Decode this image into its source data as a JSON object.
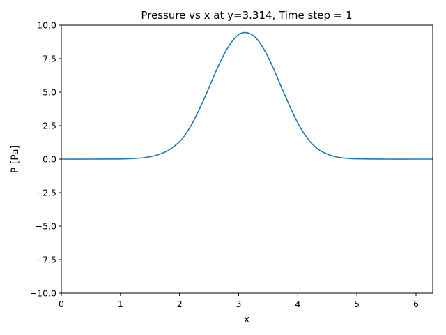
{
  "chart_data": {
    "type": "line",
    "title": "Pressure vs x at y=3.314, Time step = 1",
    "xlabel": "x",
    "ylabel": "P [Pa]",
    "xlim": [
      0,
      6.283
    ],
    "ylim": [
      -10,
      10
    ],
    "x_ticks": [
      0,
      1,
      2,
      3,
      4,
      5,
      6
    ],
    "x_tick_labels": [
      "0",
      "1",
      "2",
      "3",
      "4",
      "5",
      "6"
    ],
    "y_ticks": [
      -10,
      -7.5,
      -5,
      -2.5,
      0,
      2.5,
      5,
      7.5,
      10
    ],
    "y_tick_labels": [
      "−10.0",
      "−7.5",
      "−5.0",
      "−2.5",
      "0.0",
      "2.5",
      "5.0",
      "7.5",
      "10.0"
    ],
    "grid": false,
    "series": [
      {
        "color": "#1f77b4",
        "x": [
          0,
          0.5,
          1.0,
          1.2,
          1.4,
          1.6,
          1.8,
          2.0,
          2.1,
          2.2,
          2.3,
          2.4,
          2.5,
          2.6,
          2.7,
          2.8,
          2.9,
          3.0,
          3.1,
          3.2,
          3.3,
          3.4,
          3.5,
          3.6,
          3.7,
          3.8,
          3.9,
          4.0,
          4.1,
          4.2,
          4.3,
          4.4,
          4.6,
          4.8,
          5.0,
          5.5,
          6.0,
          6.283
        ],
        "y": [
          0,
          0,
          0.01,
          0.04,
          0.11,
          0.28,
          0.63,
          1.3,
          1.85,
          2.55,
          3.4,
          4.35,
          5.35,
          6.4,
          7.35,
          8.2,
          8.85,
          9.3,
          9.45,
          9.35,
          9.0,
          8.4,
          7.6,
          6.65,
          5.6,
          4.6,
          3.6,
          2.7,
          1.95,
          1.35,
          0.9,
          0.58,
          0.22,
          0.07,
          0.02,
          0,
          0,
          0
        ]
      }
    ]
  }
}
